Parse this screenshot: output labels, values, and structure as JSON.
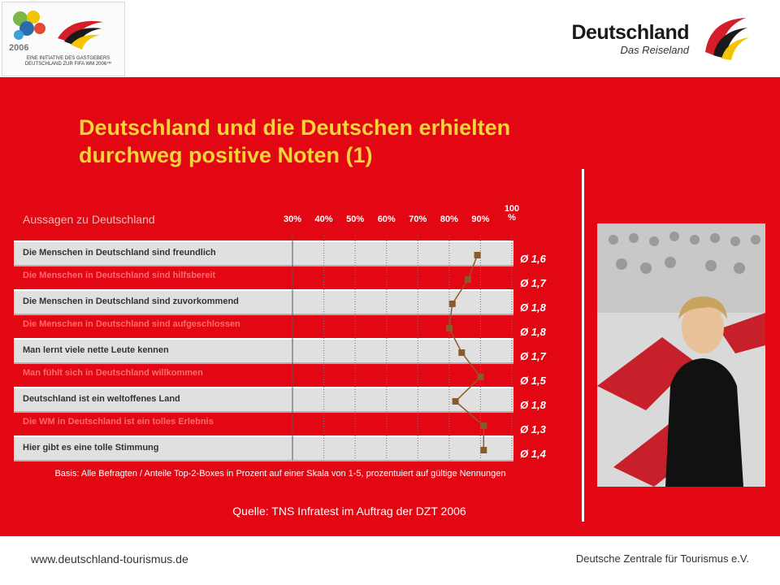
{
  "header": {
    "left_logo_text": "EINE INITIATIVE DES GASTGEBERS DEUTSCHLAND ZUR FIFA WM 2006™",
    "left_logo_year": "2006",
    "brand_title": "Deutschland",
    "brand_subtitle": "Das Reiseland"
  },
  "slide": {
    "title": "Deutschland und die Deutschen erhielten durchweg positive Noten (1)",
    "basis": "Basis: Alle Befragten / Anteile Top-2-Boxes in Prozent auf einer Skala von 1-5, prozentuiert auf gültige Nennungen",
    "source": "Quelle: TNS Infratest im Auftrag der DZT 2006"
  },
  "chart_data": {
    "type": "line",
    "title": "Aussagen zu Deutschland",
    "x_ticks": [
      "30%",
      "40%",
      "50%",
      "60%",
      "70%",
      "80%",
      "90%",
      "100 %"
    ],
    "xlim": [
      30,
      100
    ],
    "categories": [
      "Die Menschen in Deutschland sind freundlich",
      "Die Menschen in Deutschland sind hilfsbereit",
      "Die Menschen in Deutschland sind zuvorkommend",
      "Die Menschen in Deutschland sind aufgeschlossen",
      "Man lernt viele nette Leute kennen",
      "Man fühlt sich in Deutschland willkommen",
      "Deutschland ist ein weltoffenes Land",
      "Die WM in Deutschland ist ein tolles Erlebnis",
      "Hier gibt es eine tolle Stimmung"
    ],
    "values": [
      89,
      86,
      81,
      80,
      84,
      90,
      82,
      91,
      91
    ],
    "averages": [
      "Ø 1,6",
      "Ø 1,7",
      "Ø 1,8",
      "Ø 1,8",
      "Ø 1,7",
      "Ø 1,5",
      "Ø 1,8",
      "Ø 1,3",
      "Ø 1,4"
    ],
    "marker_color": "#8b5a2b",
    "line_color": "#8b5a2b",
    "grid": true
  },
  "footer": {
    "left": "www.deutschland-tourismus.de",
    "right": "Deutsche Zentrale für Tourismus e.V."
  },
  "colors": {
    "panel": "#e30613",
    "title": "#f5d43a"
  }
}
